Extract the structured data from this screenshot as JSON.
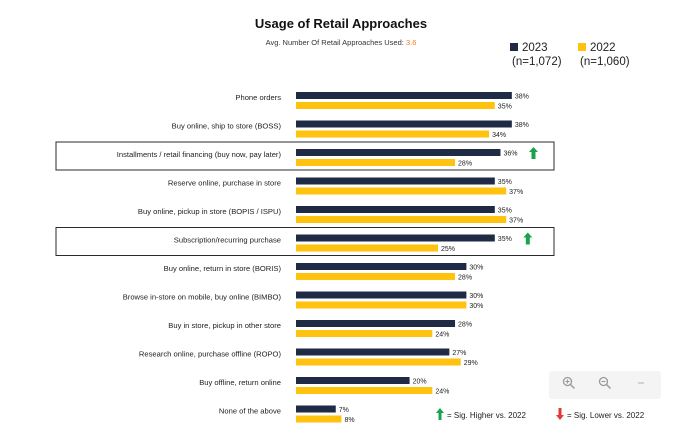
{
  "chart_data": {
    "type": "bar",
    "orientation": "horizontal",
    "title": "Usage of Retail Approaches",
    "subtitle_label": "Avg. Number Of Retail Approaches Used: ",
    "subtitle_value": "3.6",
    "categories": [
      "Phone orders",
      "Buy online, ship to store (BOSS)",
      "Installments / retail financing (buy now, pay later)",
      "Reserve online, purchase in store",
      "Buy online, pickup in store (BOPIS / ISPU)",
      "Subscription/recurring purchase",
      "Buy online, return in store (BORIS)",
      "Browse in-store on mobile, buy online (BIMBO)",
      "Buy in store, pickup in other store",
      "Research online, purchase offline (ROPO)",
      "Buy offline, return online",
      "None of the above"
    ],
    "series": [
      {
        "name": "2023",
        "n_label": "(n=1,072)",
        "color": "#1f2a44",
        "values": [
          38,
          38,
          36,
          35,
          35,
          35,
          30,
          30,
          28,
          27,
          20,
          7
        ]
      },
      {
        "name": "2022",
        "n_label": "(n=1,060)",
        "color": "#ffc20e",
        "values": [
          35,
          34,
          28,
          37,
          37,
          25,
          28,
          30,
          24,
          29,
          24,
          8
        ]
      }
    ],
    "value_suffix": "%",
    "xlim": [
      0,
      40
    ],
    "highlighted": [
      2,
      5
    ],
    "sig_higher": [
      2,
      5
    ],
    "sig_lower": [],
    "footnotes": {
      "higher": "= Sig. Higher vs. 2022",
      "lower": "= Sig. Lower vs. 2022"
    },
    "colors": {
      "up": "#1aa34a",
      "down": "#e53935",
      "subtitle_accent": "#f07a2b"
    }
  }
}
